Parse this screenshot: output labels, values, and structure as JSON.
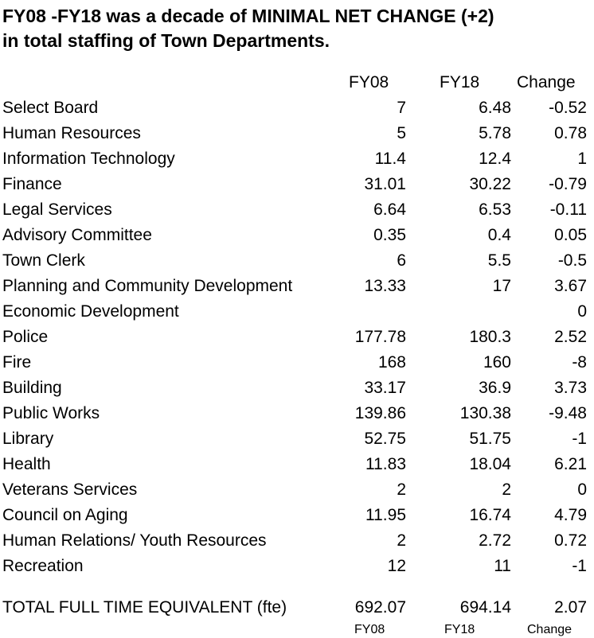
{
  "title": {
    "line1": "FY08 -FY18 was a decade of MINIMAL NET CHANGE (+2)",
    "line2": "in total staffing of Town Departments."
  },
  "header": {
    "fy08": "FY08",
    "fy18": "FY18",
    "change": "Change"
  },
  "rows": [
    {
      "dept": "Select Board",
      "fy08": "7",
      "fy18": "6.48",
      "change": "-0.52"
    },
    {
      "dept": "Human Resources",
      "fy08": "5",
      "fy18": "5.78",
      "change": "0.78"
    },
    {
      "dept": "Information Technology",
      "fy08": "11.4",
      "fy18": "12.4",
      "change": "1"
    },
    {
      "dept": "Finance",
      "fy08": "31.01",
      "fy18": "30.22",
      "change": "-0.79"
    },
    {
      "dept": "Legal Services",
      "fy08": "6.64",
      "fy18": "6.53",
      "change": "-0.11"
    },
    {
      "dept": "Advisory Committee",
      "fy08": "0.35",
      "fy18": "0.4",
      "change": "0.05"
    },
    {
      "dept": "Town Clerk",
      "fy08": "6",
      "fy18": "5.5",
      "change": "-0.5"
    },
    {
      "dept": "Planning and Community Development",
      "fy08": "13.33",
      "fy18": "17",
      "change": "3.67"
    },
    {
      "dept": "Economic Development",
      "fy08": "",
      "fy18": "",
      "change": "0"
    },
    {
      "dept": "Police",
      "fy08": "177.78",
      "fy18": "180.3",
      "change": "2.52"
    },
    {
      "dept": "Fire",
      "fy08": "168",
      "fy18": "160",
      "change": "-8"
    },
    {
      "dept": "Building",
      "fy08": "33.17",
      "fy18": "36.9",
      "change": "3.73"
    },
    {
      "dept": "Public Works",
      "fy08": "139.86",
      "fy18": "130.38",
      "change": "-9.48"
    },
    {
      "dept": "Library",
      "fy08": "52.75",
      "fy18": "51.75",
      "change": "-1"
    },
    {
      "dept": "Health",
      "fy08": "11.83",
      "fy18": "18.04",
      "change": "6.21"
    },
    {
      "dept": "Veterans Services",
      "fy08": "2",
      "fy18": "2",
      "change": "0"
    },
    {
      "dept": "Council on Aging",
      "fy08": "11.95",
      "fy18": "16.74",
      "change": "4.79"
    },
    {
      "dept": "Human Relations/ Youth Resources",
      "fy08": "2",
      "fy18": "2.72",
      "change": "0.72"
    },
    {
      "dept": "Recreation",
      "fy08": "12",
      "fy18": "11",
      "change": "-1"
    }
  ],
  "total": {
    "label": "TOTAL FULL TIME EQUIVALENT (fte)",
    "fy08": "692.07",
    "fy18": "694.14",
    "change": "2.07"
  },
  "footer": {
    "fy08": "FY08",
    "fy18": "FY18",
    "change": "Change"
  }
}
